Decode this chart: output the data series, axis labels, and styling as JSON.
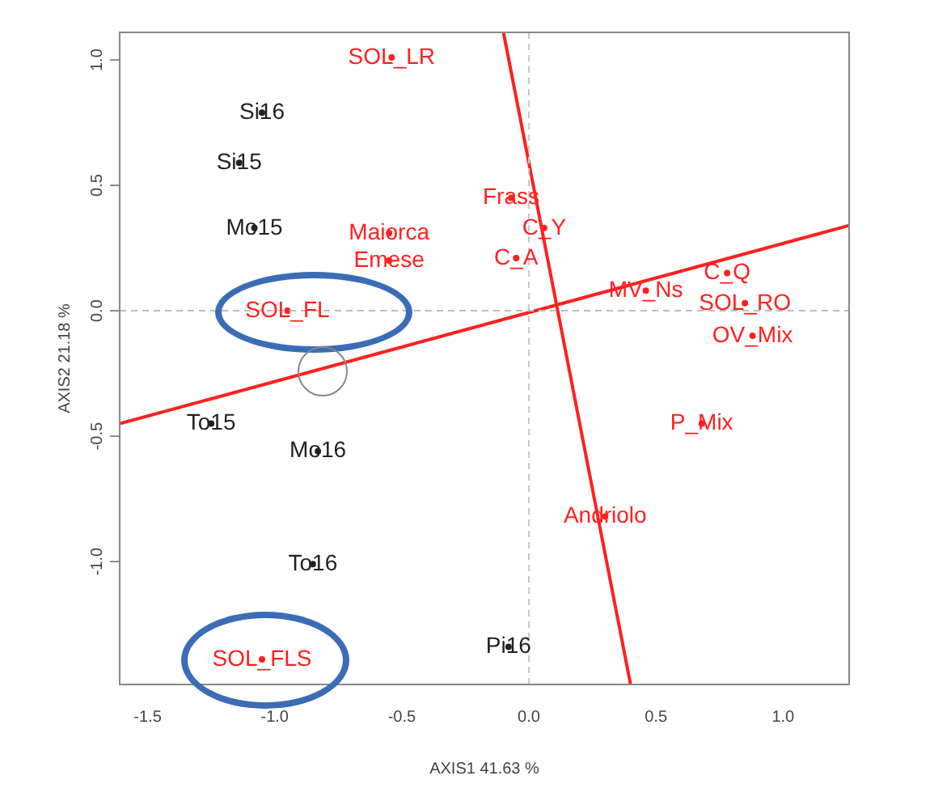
{
  "chart_data": {
    "type": "scatter",
    "xlabel": "AXIS1 41.63 %",
    "ylabel": "AXIS2 21.18 %",
    "xlim": [
      -1.61,
      1.26
    ],
    "ylim": [
      -1.49,
      1.11
    ],
    "xticks": [
      -1.5,
      {
        "value": -1,
        "label": "-1.0"
      },
      -0.5,
      {
        "value": 0,
        "label": "0.0"
      },
      0.5,
      {
        "value": 1,
        "label": "1.0"
      }
    ],
    "yticks": [
      {
        "value": -1,
        "label": "-1.0"
      },
      -0.5,
      {
        "value": 0,
        "label": "0.0"
      },
      0.5,
      {
        "value": 1,
        "label": "1.0"
      }
    ],
    "grid": false,
    "legend": false,
    "marker": "circle",
    "ref_lines": [
      {
        "axis": "x",
        "value": 0,
        "color": "#c8c8c8",
        "line_style": "dashed"
      },
      {
        "axis": "y",
        "value": 0,
        "color": "#bdbdbd",
        "line_style": "dashed"
      }
    ],
    "series": [
      {
        "color": "#222222",
        "x": [
          -1.05,
          -1.14,
          -1.08,
          -1.25,
          -0.83,
          -0.85,
          -0.08
        ],
        "values": [
          0.79,
          0.59,
          0.33,
          -0.45,
          -0.56,
          -1.01,
          -1.34
        ]
      },
      {
        "color": "#ff2020",
        "x": [
          -0.54,
          -0.07,
          -0.55,
          -0.55,
          0.06,
          -0.05,
          0.46,
          0.78,
          0.85,
          0.88,
          -0.95,
          -1.05,
          0.68,
          0.3
        ],
        "values": [
          1.01,
          0.45,
          0.31,
          0.2,
          0.33,
          0.21,
          0.08,
          0.15,
          0.03,
          -0.1,
          0,
          -1.39,
          -0.45,
          -0.82
        ]
      },
      {
        "type": "line",
        "marker": "none",
        "color": "#ff2020",
        "x": [
          -1.61,
          1.26
        ],
        "values": [
          -0.45,
          0.34
        ]
      },
      {
        "type": "line",
        "marker": "none",
        "color": "#ff2020",
        "x": [
          -0.1,
          0.4
        ],
        "values": [
          1.11,
          -1.49
        ]
      }
    ],
    "annotations": [
      {
        "text": "Si16",
        "x": -1.05,
        "y": 0.79
      },
      {
        "text": "Si15",
        "x": -1.14,
        "y": 0.59
      },
      {
        "text": "Mo15",
        "x": -1.08,
        "y": 0.33
      },
      {
        "text": "To15",
        "x": -1.25,
        "y": -0.45
      },
      {
        "text": "Mo16",
        "x": -0.83,
        "y": -0.56
      },
      {
        "text": "To16",
        "x": -0.85,
        "y": -1.01
      },
      {
        "text": "Pi16",
        "x": -0.08,
        "y": -1.34
      },
      {
        "text": "SOL_LR",
        "x": -0.54,
        "y": 1.01
      },
      {
        "text": "Frass",
        "x": -0.07,
        "y": 0.45
      },
      {
        "text": "Maiorca",
        "x": -0.55,
        "y": 0.31
      },
      {
        "text": "Emese",
        "x": -0.55,
        "y": 0.2
      },
      {
        "text": "C_Y",
        "x": 0.06,
        "y": 0.33
      },
      {
        "text": "C_A",
        "x": -0.05,
        "y": 0.21
      },
      {
        "text": "MV_Ns",
        "x": 0.46,
        "y": 0.08
      },
      {
        "text": "C_Q",
        "x": 0.78,
        "y": 0.15
      },
      {
        "text": "SOL_RO",
        "x": 0.85,
        "y": 0.03
      },
      {
        "text": "OV_Mix",
        "x": 0.88,
        "y": -0.1
      },
      {
        "text": "SOL_FL",
        "x": -0.95,
        "y": 0
      },
      {
        "text": "SOL_FLS",
        "x": -1.05,
        "y": -1.39
      },
      {
        "text": "P_Mix",
        "x": 0.68,
        "y": -0.45
      },
      {
        "text": "Andriolo",
        "x": 0.3,
        "y": -0.82
      }
    ]
  }
}
